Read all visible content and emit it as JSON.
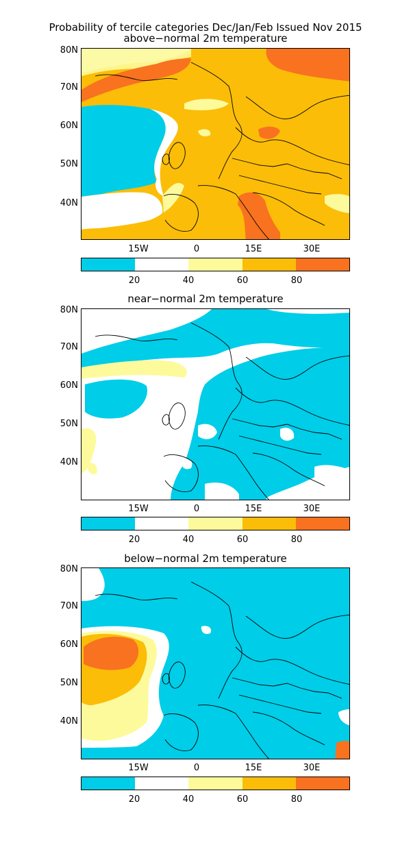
{
  "figure": {
    "title": "Probability of tercile categories Dec/Jan/Feb Issued Nov 2015"
  },
  "panels": [
    {
      "title": "above−normal 2m temperature",
      "lat_labels": [
        "80N",
        "70N",
        "60N",
        "50N",
        "40N"
      ],
      "lon_labels": [
        "15W",
        "0",
        "15E",
        "30E"
      ],
      "colorbar_labels": [
        "20",
        "40",
        "60",
        "80"
      ]
    },
    {
      "title": "near−normal 2m temperature",
      "lat_labels": [
        "80N",
        "70N",
        "60N",
        "50N",
        "40N"
      ],
      "lon_labels": [
        "15W",
        "0",
        "15E",
        "30E"
      ],
      "colorbar_labels": [
        "20",
        "40",
        "60",
        "80"
      ]
    },
    {
      "title": "below−normal 2m temperature",
      "lat_labels": [
        "80N",
        "70N",
        "60N",
        "50N",
        "40N"
      ],
      "lon_labels": [
        "15W",
        "0",
        "15E",
        "30E"
      ],
      "colorbar_labels": [
        "20",
        "40",
        "60",
        "80"
      ]
    }
  ],
  "colors": {
    "bin_0_20": "#00cde8",
    "bin_20_40": "#ffffff",
    "bin_40_60": "#fdfa9c",
    "bin_60_80": "#fbbd08",
    "bin_80_100": "#f87220",
    "coastline": "#000000"
  },
  "map_extent": {
    "lon_range": [
      "30W",
      "40E"
    ],
    "lat_range": [
      "30N",
      "80N"
    ]
  }
}
